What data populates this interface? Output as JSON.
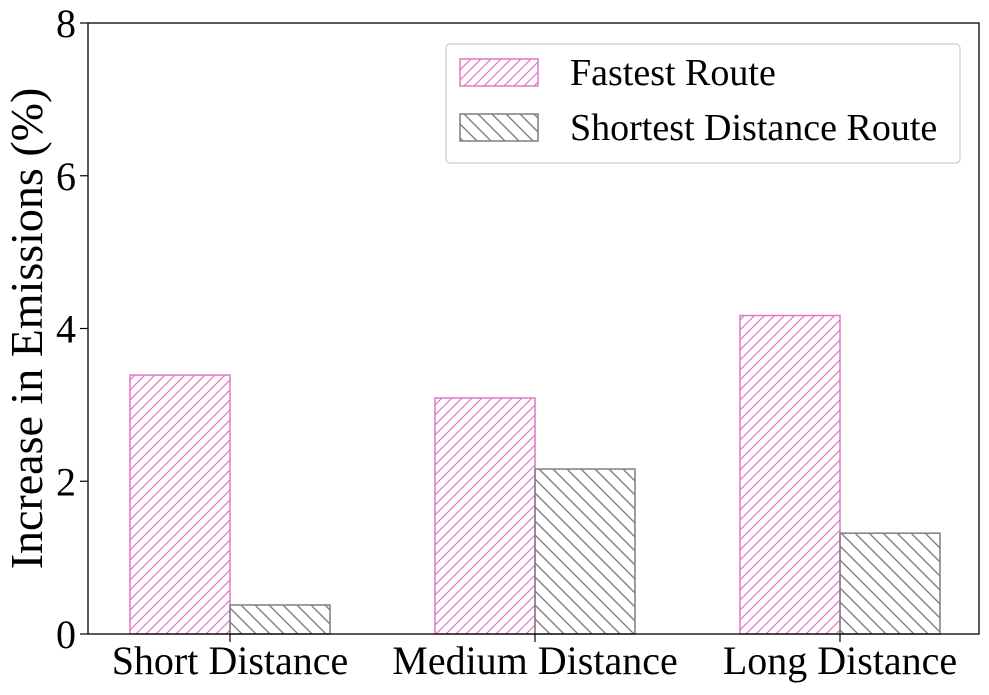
{
  "chart_data": {
    "type": "bar",
    "categories": [
      "Short Distance",
      "Medium Distance",
      "Long Distance"
    ],
    "series": [
      {
        "name": "Fastest Route",
        "values": [
          3.39,
          3.09,
          4.17
        ],
        "color": "#e377c2",
        "hatch": "forward-diagonal"
      },
      {
        "name": "Shortest Distance Route",
        "values": [
          0.38,
          2.16,
          1.32
        ],
        "color": "#7f7f7f",
        "hatch": "back-diagonal"
      }
    ],
    "title": "",
    "xlabel": "",
    "ylabel": "Increase in Emissions (%)",
    "ylim": [
      0,
      8
    ],
    "yticks": [
      "0",
      "2",
      "4",
      "6",
      "8"
    ],
    "grid": false,
    "legend_position": "top-right"
  }
}
